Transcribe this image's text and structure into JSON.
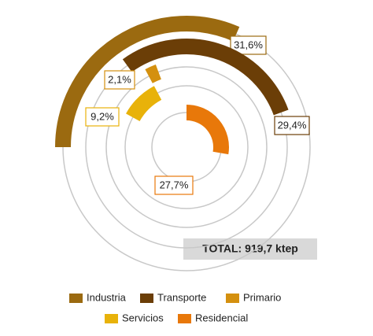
{
  "chart_data": {
    "type": "radial-bar",
    "categories": [
      "Industria",
      "Transporte",
      "Primario",
      "Servicios",
      "Residencial"
    ],
    "values": [
      31.6,
      29.4,
      2.1,
      9.2,
      27.7
    ],
    "value_labels": [
      "31,6%",
      "29,4%",
      "2,1%",
      "9,2%",
      "27,7%"
    ],
    "colors": [
      "#9b6a10",
      "#6b3e07",
      "#d4900f",
      "#e8b20a",
      "#e8780a"
    ],
    "total": "TOTAL: 919,7 ktep"
  }
}
